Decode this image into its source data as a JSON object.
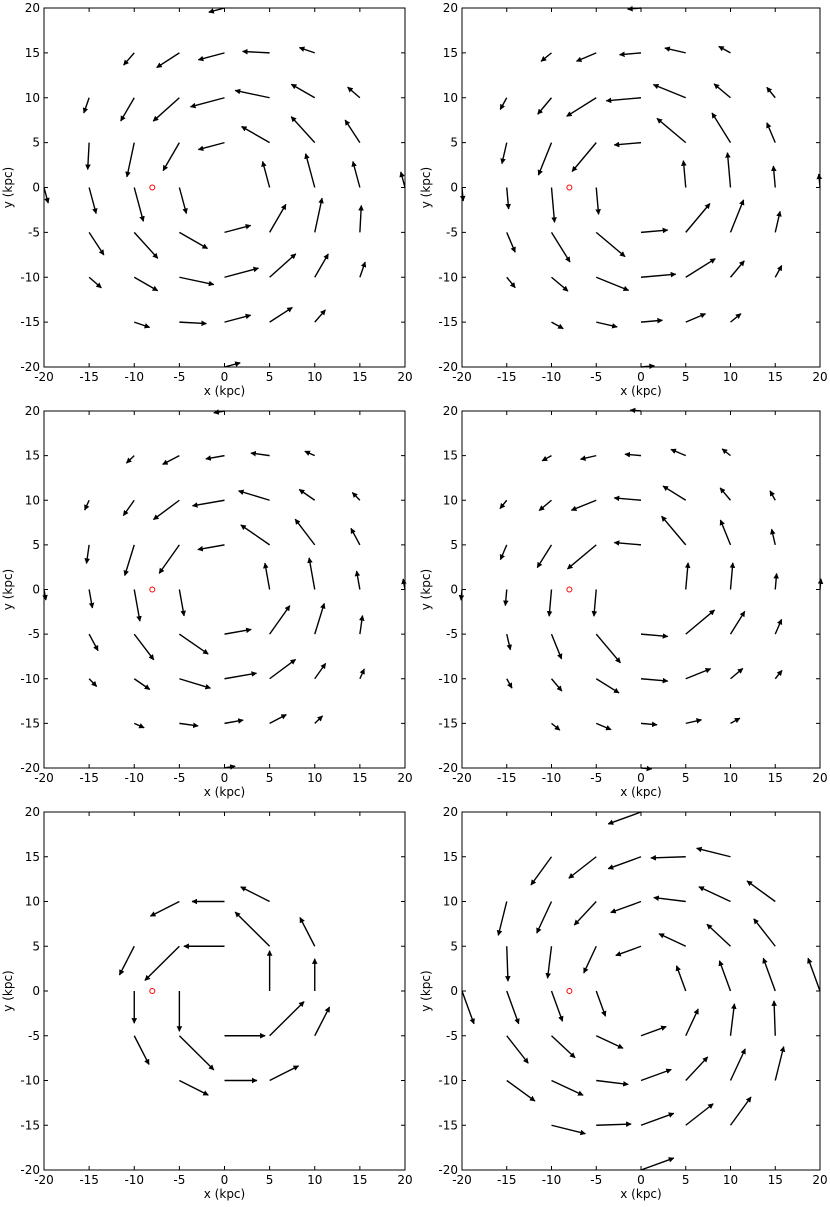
{
  "chart_data": [
    {
      "type": "quiver",
      "x_label": "x  (kpc)",
      "y_label": "y  (kpc)",
      "xlim": [
        -20,
        20
      ],
      "ylim": [
        -20,
        20
      ],
      "xticks": [
        -20,
        -15,
        -10,
        -5,
        0,
        5,
        10,
        15,
        20
      ],
      "yticks": [
        -20,
        -15,
        -10,
        -5,
        0,
        5,
        10,
        15,
        20
      ],
      "color": "#000000",
      "x": [
        -20,
        -15,
        -15,
        -15,
        -15,
        -15,
        -10,
        -10,
        -10,
        -10,
        -10,
        -10,
        -10,
        -5,
        -5,
        -5,
        -5,
        -5,
        -5,
        -5,
        0,
        0,
        0,
        0,
        0,
        0,
        0,
        0,
        5,
        5,
        5,
        5,
        5,
        5,
        5,
        10,
        10,
        10,
        10,
        10,
        10,
        10,
        15,
        15,
        15,
        15,
        15,
        20
      ],
      "y": [
        0,
        -10,
        -5,
        0,
        5,
        10,
        -15,
        -10,
        -5,
        0,
        5,
        10,
        15,
        -15,
        -10,
        -5,
        0,
        5,
        10,
        15,
        -20,
        -15,
        -10,
        -5,
        5,
        10,
        15,
        20,
        -15,
        -10,
        -5,
        0,
        5,
        10,
        15,
        -15,
        -10,
        -5,
        0,
        5,
        10,
        15,
        -10,
        -5,
        0,
        5,
        10,
        0
      ],
      "angle": [
        -75,
        -41,
        -57,
        -75,
        -93,
        -109,
        -19,
        -30,
        -48,
        -75,
        -102,
        -120,
        -131,
        -3,
        -12,
        -30,
        -75,
        -120,
        -138,
        -147,
        15,
        15,
        15,
        15,
        195,
        195,
        195,
        195,
        33,
        42,
        60,
        105,
        150,
        168,
        177,
        49,
        60,
        78,
        105,
        132,
        150,
        161,
        71,
        87,
        105,
        123,
        139,
        105
      ],
      "length": [
        0.6,
        0.6,
        1,
        1,
        1,
        0.6,
        0.6,
        1,
        1.3,
        1.3,
        1.3,
        1,
        0.6,
        1,
        1.3,
        1.2,
        1,
        1.2,
        1.3,
        1,
        0.6,
        1,
        1.3,
        1,
        1,
        1.3,
        1,
        0.6,
        1,
        1.3,
        1.2,
        1,
        1.2,
        1.3,
        1,
        0.6,
        1,
        1.3,
        1.3,
        1.3,
        1,
        0.6,
        0.6,
        1,
        1,
        1,
        0.6,
        0.6
      ],
      "marker": {
        "x": -8,
        "y": 0,
        "color": "#ff0000"
      }
    },
    {
      "type": "quiver",
      "x_label": "x  (kpc)",
      "y_label": "y  (kpc)",
      "xlim": [
        -20,
        20
      ],
      "ylim": [
        -20,
        20
      ],
      "xticks": [
        -20,
        -15,
        -10,
        -5,
        0,
        5,
        10,
        15,
        20
      ],
      "yticks": [
        -20,
        -15,
        -10,
        -5,
        0,
        5,
        10,
        15,
        20
      ],
      "color": "#000000",
      "x": [
        -20,
        -15,
        -15,
        -15,
        -15,
        -15,
        -10,
        -10,
        -10,
        -10,
        -10,
        -10,
        -10,
        -5,
        -5,
        -5,
        -5,
        -5,
        -5,
        -5,
        0,
        0,
        0,
        0,
        0,
        0,
        0,
        0,
        5,
        5,
        5,
        5,
        5,
        5,
        5,
        10,
        10,
        10,
        10,
        10,
        10,
        10,
        15,
        15,
        15,
        15,
        15,
        20
      ],
      "y": [
        0,
        -10,
        -5,
        0,
        5,
        10,
        -15,
        -10,
        -5,
        0,
        5,
        10,
        15,
        -15,
        -10,
        -5,
        0,
        5,
        10,
        15,
        -20,
        -15,
        -10,
        -5,
        5,
        10,
        15,
        20,
        -15,
        -10,
        -5,
        0,
        5,
        10,
        15,
        -15,
        -10,
        -5,
        0,
        5,
        10,
        15,
        -10,
        -5,
        0,
        5,
        10,
        0
      ],
      "angle": [
        -85,
        -51,
        -67,
        -85,
        -103,
        -119,
        -29,
        -40,
        -58,
        -85,
        -112,
        -130,
        -141,
        -13,
        -22,
        -40,
        -85,
        -130,
        -148,
        -157,
        5,
        5,
        5,
        5,
        185,
        185,
        185,
        185,
        23,
        32,
        50,
        95,
        140,
        158,
        167,
        39,
        50,
        68,
        95,
        122,
        140,
        151,
        61,
        77,
        95,
        113,
        129,
        95
      ],
      "length": [
        0.5,
        0.5,
        0.8,
        0.8,
        0.8,
        0.5,
        0.5,
        0.8,
        1.3,
        1.3,
        1.3,
        0.8,
        0.5,
        0.8,
        1.3,
        1.4,
        1,
        1.4,
        1.3,
        0.8,
        0.5,
        0.8,
        1.3,
        1,
        1,
        1.3,
        0.8,
        0.5,
        0.8,
        1.3,
        1.4,
        1,
        1.4,
        1.3,
        0.8,
        0.5,
        0.8,
        1.3,
        1.3,
        1.3,
        0.8,
        0.5,
        0.5,
        0.8,
        0.8,
        0.8,
        0.5,
        0.5
      ],
      "marker": {
        "x": -8,
        "y": 0,
        "color": "#ff0000"
      }
    },
    {
      "type": "quiver",
      "x_label": "x  (kpc)",
      "y_label": "y  (kpc)",
      "xlim": [
        -20,
        20
      ],
      "ylim": [
        -20,
        20
      ],
      "xticks": [
        -20,
        -15,
        -10,
        -5,
        0,
        5,
        10,
        15,
        20
      ],
      "yticks": [
        -20,
        -15,
        -10,
        -5,
        0,
        5,
        10,
        15,
        20
      ],
      "color": "#000000",
      "x": [
        -20,
        -15,
        -15,
        -15,
        -15,
        -15,
        -10,
        -10,
        -10,
        -10,
        -10,
        -10,
        -10,
        -5,
        -5,
        -5,
        -5,
        -5,
        -5,
        -5,
        0,
        0,
        0,
        0,
        0,
        0,
        0,
        0,
        5,
        5,
        5,
        5,
        5,
        5,
        5,
        10,
        10,
        10,
        10,
        10,
        10,
        10,
        15,
        15,
        15,
        15,
        15,
        20
      ],
      "y": [
        0,
        -10,
        -5,
        0,
        5,
        10,
        -15,
        -10,
        -5,
        0,
        5,
        10,
        15,
        -15,
        -10,
        -5,
        0,
        5,
        10,
        15,
        -20,
        -15,
        -10,
        -5,
        5,
        10,
        15,
        20,
        -15,
        -10,
        -5,
        0,
        5,
        10,
        15,
        -15,
        -10,
        -5,
        0,
        5,
        10,
        15,
        -10,
        -5,
        0,
        5,
        10,
        0
      ],
      "angle": [
        -80,
        -46,
        -62,
        -80,
        -98,
        -114,
        -24,
        -35,
        -53,
        -80,
        -107,
        -125,
        -136,
        -8,
        -17,
        -35,
        -80,
        -125,
        -143,
        -152,
        10,
        10,
        10,
        10,
        190,
        190,
        190,
        190,
        28,
        37,
        55,
        100,
        145,
        163,
        172,
        44,
        55,
        73,
        100,
        127,
        145,
        156,
        66,
        82,
        100,
        118,
        134,
        100
      ],
      "length": [
        0.4,
        0.4,
        0.7,
        0.7,
        0.7,
        0.4,
        0.4,
        0.7,
        1.2,
        1.2,
        1.2,
        0.7,
        0.4,
        0.7,
        1.2,
        1.3,
        1,
        1.3,
        1.2,
        0.7,
        0.4,
        0.7,
        1.2,
        1,
        1,
        1.2,
        0.7,
        0.4,
        0.7,
        1.2,
        1.3,
        1,
        1.3,
        1.2,
        0.7,
        0.4,
        0.7,
        1.2,
        1.2,
        1.2,
        0.7,
        0.4,
        0.4,
        0.7,
        0.7,
        0.7,
        0.4,
        0.4
      ],
      "marker": {
        "x": -8,
        "y": 0,
        "color": "#ff0000"
      }
    },
    {
      "type": "quiver",
      "x_label": "x  (kpc)",
      "y_label": "y  (kpc)",
      "xlim": [
        -20,
        20
      ],
      "ylim": [
        -20,
        20
      ],
      "xticks": [
        -20,
        -15,
        -10,
        -5,
        0,
        5,
        10,
        15,
        20
      ],
      "yticks": [
        -20,
        -15,
        -10,
        -5,
        0,
        5,
        10,
        15,
        20
      ],
      "color": "#000000",
      "x": [
        -20,
        -15,
        -15,
        -15,
        -15,
        -15,
        -10,
        -10,
        -10,
        -10,
        -10,
        -10,
        -10,
        -5,
        -5,
        -5,
        -5,
        -5,
        -5,
        -5,
        0,
        0,
        0,
        0,
        0,
        0,
        0,
        0,
        5,
        5,
        5,
        5,
        5,
        5,
        5,
        10,
        10,
        10,
        10,
        10,
        10,
        10,
        15,
        15,
        15,
        15,
        15,
        20
      ],
      "y": [
        0,
        -10,
        -5,
        0,
        5,
        10,
        -15,
        -10,
        -5,
        0,
        5,
        10,
        15,
        -15,
        -10,
        -5,
        0,
        5,
        10,
        15,
        -20,
        -15,
        -10,
        -5,
        5,
        10,
        15,
        20,
        -15,
        -10,
        -5,
        0,
        5,
        10,
        15,
        -15,
        -10,
        -5,
        0,
        5,
        10,
        15,
        -10,
        -5,
        0,
        5,
        10,
        0
      ],
      "angle": [
        -95,
        -61,
        -77,
        -95,
        -113,
        -129,
        -39,
        -50,
        -68,
        -95,
        -122,
        -140,
        -151,
        -23,
        -32,
        -50,
        -95,
        -140,
        -158,
        -167,
        -5,
        -5,
        -5,
        -5,
        175,
        175,
        175,
        175,
        13,
        22,
        40,
        85,
        130,
        148,
        157,
        29,
        40,
        58,
        85,
        112,
        130,
        141,
        51,
        67,
        85,
        103,
        119,
        85
      ],
      "length": [
        0.4,
        0.4,
        0.6,
        0.6,
        0.6,
        0.4,
        0.4,
        0.6,
        1,
        1,
        1,
        0.6,
        0.4,
        0.6,
        1,
        1.4,
        1,
        1.4,
        1,
        0.6,
        0.4,
        0.6,
        1,
        1,
        1,
        1,
        0.6,
        0.4,
        0.6,
        1,
        1.4,
        1,
        1.4,
        1,
        0.6,
        0.4,
        0.6,
        1,
        1,
        1,
        0.6,
        0.4,
        0.4,
        0.6,
        0.6,
        0.6,
        0.4,
        0.4
      ],
      "marker": {
        "x": -8,
        "y": 0,
        "color": "#ff0000"
      }
    },
    {
      "type": "quiver",
      "x_label": "x  (kpc)",
      "y_label": "y  (kpc)",
      "xlim": [
        -20,
        20
      ],
      "ylim": [
        -20,
        20
      ],
      "xticks": [
        -20,
        -15,
        -10,
        -5,
        0,
        5,
        10,
        15,
        20
      ],
      "yticks": [
        -20,
        -15,
        -10,
        -5,
        0,
        5,
        10,
        15,
        20
      ],
      "color": "#000000",
      "x": [
        -10,
        -10,
        -10,
        -5,
        -5,
        -5,
        -5,
        -5,
        0,
        0,
        0,
        0,
        5,
        5,
        5,
        5,
        5,
        10,
        10,
        10
      ],
      "y": [
        -5,
        0,
        5,
        -10,
        -5,
        0,
        5,
        10,
        -10,
        -5,
        5,
        10,
        -10,
        -5,
        0,
        5,
        10,
        -5,
        0,
        5
      ],
      "angle": [
        -63,
        -90,
        -117,
        -27,
        -45,
        -90,
        -135,
        -153,
        0,
        0,
        180,
        180,
        27,
        45,
        90,
        135,
        153,
        63,
        90,
        117
      ],
      "length": [
        1.2,
        1.2,
        1.2,
        1.2,
        1.8,
        1.5,
        1.8,
        1.2,
        1.2,
        1.5,
        1.5,
        1.2,
        1.2,
        1.8,
        1.5,
        1.8,
        1.2,
        1.2,
        1.2,
        1.2
      ],
      "marker": {
        "x": -8,
        "y": 0,
        "color": "#ff0000"
      }
    },
    {
      "type": "quiver",
      "x_label": "x  (kpc)",
      "y_label": "y  (kpc)",
      "xlim": [
        -20,
        20
      ],
      "ylim": [
        -20,
        20
      ],
      "xticks": [
        -20,
        -15,
        -10,
        -5,
        0,
        5,
        10,
        15,
        20
      ],
      "yticks": [
        -20,
        -15,
        -10,
        -5,
        0,
        5,
        10,
        15,
        20
      ],
      "color": "#000000",
      "x": [
        -20,
        -15,
        -15,
        -15,
        -15,
        -15,
        -10,
        -10,
        -10,
        -10,
        -10,
        -10,
        -10,
        -5,
        -5,
        -5,
        -5,
        -5,
        -5,
        -5,
        0,
        0,
        0,
        0,
        0,
        0,
        0,
        0,
        5,
        5,
        5,
        5,
        5,
        5,
        5,
        10,
        10,
        10,
        10,
        10,
        10,
        10,
        15,
        15,
        15,
        15,
        15,
        20
      ],
      "y": [
        0,
        -10,
        -5,
        0,
        5,
        10,
        -15,
        -10,
        -5,
        0,
        5,
        10,
        15,
        -15,
        -10,
        -5,
        0,
        5,
        10,
        15,
        -20,
        -15,
        -10,
        -5,
        5,
        10,
        15,
        20,
        -15,
        -10,
        -5,
        0,
        5,
        10,
        15,
        -15,
        -10,
        -5,
        0,
        5,
        10,
        15,
        -10,
        -5,
        0,
        5,
        10,
        0
      ],
      "angle": [
        -70,
        -36,
        -52,
        -70,
        -88,
        -104,
        -14,
        -25,
        -43,
        -70,
        -97,
        -115,
        -126,
        2,
        -7,
        -25,
        -70,
        -115,
        -133,
        -142,
        20,
        20,
        20,
        20,
        200,
        200,
        200,
        200,
        38,
        47,
        65,
        110,
        155,
        173,
        182,
        54,
        65,
        83,
        110,
        137,
        155,
        166,
        76,
        92,
        110,
        128,
        144,
        110
      ],
      "length": [
        1.3,
        1.3,
        1.3,
        1.3,
        1.3,
        1.3,
        1.3,
        1.3,
        1.2,
        1.2,
        1.2,
        1.3,
        1.3,
        1.3,
        1.2,
        1.1,
        1,
        1.1,
        1.2,
        1.3,
        1.3,
        1.3,
        1.2,
        1,
        1,
        1.2,
        1.3,
        1.3,
        1.3,
        1.2,
        1.1,
        1,
        1.1,
        1.2,
        1.3,
        1.3,
        1.3,
        1.2,
        1.2,
        1.2,
        1.3,
        1.3,
        1.3,
        1.3,
        1.3,
        1.3,
        1.3,
        1.3
      ],
      "marker": {
        "x": -8,
        "y": 0,
        "color": "#ff0000"
      }
    }
  ]
}
